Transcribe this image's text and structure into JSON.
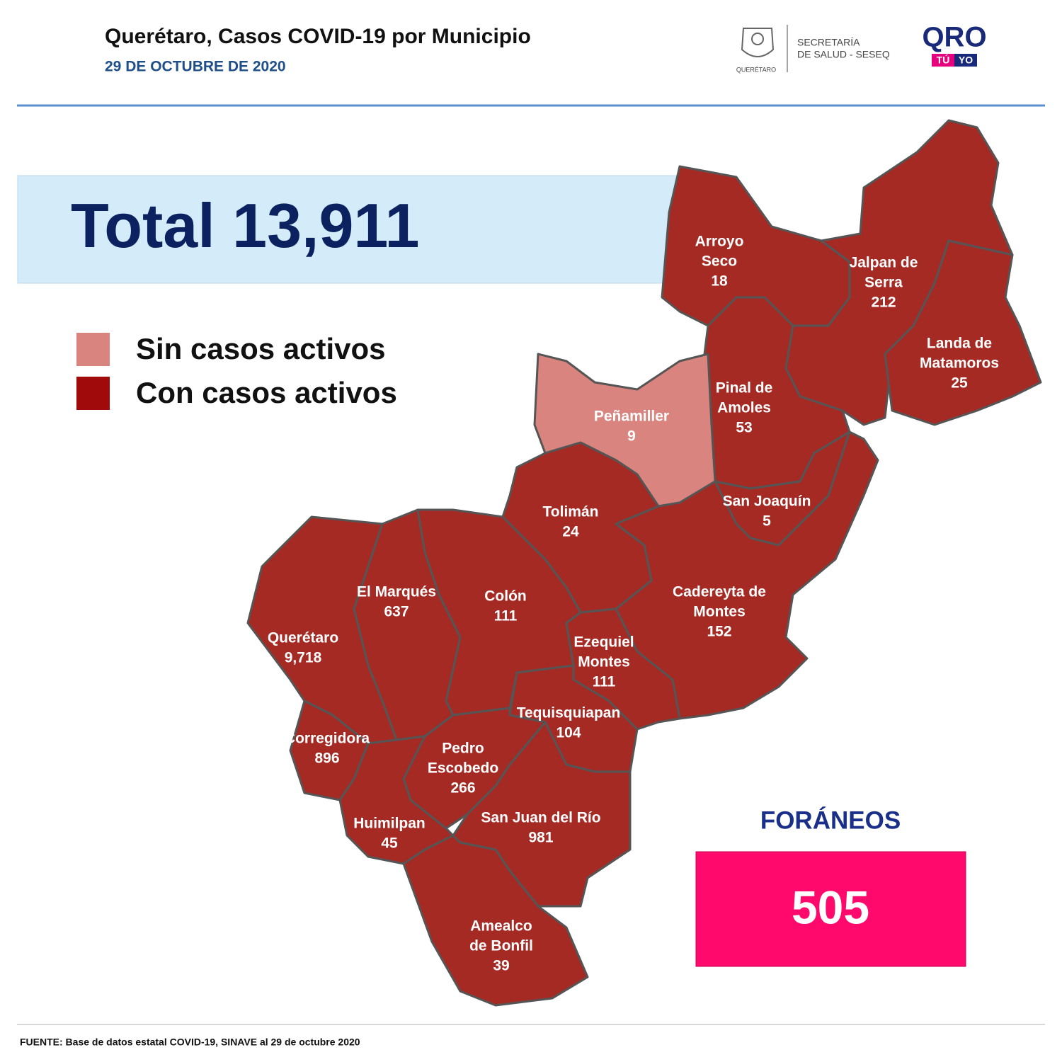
{
  "header": {
    "title": "Querétaro, Casos COVID-19 por Municipio",
    "date": "29 DE OCTUBRE DE 2020",
    "seal_caption": "QUERÉTARO",
    "secretaria": [
      "SECRETARÍA",
      "DE SALUD - SESEQ"
    ],
    "qro": "QRO",
    "tu": "TÚ",
    "yo": "YO"
  },
  "total": {
    "label": "Total",
    "value": "13,911"
  },
  "legend": [
    {
      "label": "Sin casos activos",
      "color": "#d9847e"
    },
    {
      "label": "Con casos activos",
      "color": "#a00a0a"
    }
  ],
  "municipalities": [
    {
      "name_lines": [
        "Arroyo",
        "Seco"
      ],
      "cases": "18",
      "color": "#a52a24"
    },
    {
      "name_lines": [
        "Jalpan de",
        "Serra"
      ],
      "cases": "212",
      "color": "#a52a24"
    },
    {
      "name_lines": [
        "Landa de",
        "Matamoros"
      ],
      "cases": "25",
      "color": "#a52a24"
    },
    {
      "name_lines": [
        "Pinal de",
        "Amoles"
      ],
      "cases": "53",
      "color": "#a52a24"
    },
    {
      "name_lines": [
        "Peñamiller"
      ],
      "cases": "9",
      "color": "#d9847e"
    },
    {
      "name_lines": [
        "San Joaquín"
      ],
      "cases": "5",
      "color": "#a52a24"
    },
    {
      "name_lines": [
        "Cadereyta de",
        "Montes"
      ],
      "cases": "152",
      "color": "#a52a24"
    },
    {
      "name_lines": [
        "Tolimán"
      ],
      "cases": "24",
      "color": "#a52a24"
    },
    {
      "name_lines": [
        "Colón"
      ],
      "cases": "111",
      "color": "#a52a24"
    },
    {
      "name_lines": [
        "El  Marqués"
      ],
      "cases": "637",
      "color": "#a52a24"
    },
    {
      "name_lines": [
        "Querétaro"
      ],
      "cases": "9,718",
      "color": "#a52a24"
    },
    {
      "name_lines": [
        "Corregidora"
      ],
      "cases": "896",
      "color": "#a52a24"
    },
    {
      "name_lines": [
        "Ezequiel",
        "Montes"
      ],
      "cases": "111",
      "color": "#a52a24"
    },
    {
      "name_lines": [
        "Tequisquiapan"
      ],
      "cases": "104",
      "color": "#a52a24"
    },
    {
      "name_lines": [
        "Pedro",
        "Escobedo"
      ],
      "cases": "266",
      "color": "#a52a24"
    },
    {
      "name_lines": [
        "Huimilpan"
      ],
      "cases": "45",
      "color": "#a52a24"
    },
    {
      "name_lines": [
        "San Juan del Río"
      ],
      "cases": "981",
      "color": "#a52a24"
    },
    {
      "name_lines": [
        "Amealco",
        "de Bonfil"
      ],
      "cases": "39",
      "color": "#a52a24"
    }
  ],
  "foraneos": {
    "label": "FORÁNEOS",
    "value": "505"
  },
  "footer": "FUENTE: Base de datos estatal COVID-19, SINAVE al 29 de octubre  2020"
}
